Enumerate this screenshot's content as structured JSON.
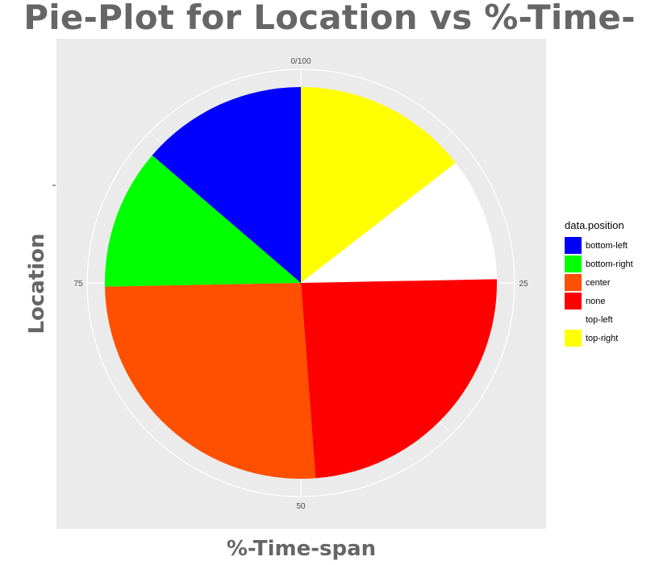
{
  "chart_data": {
    "type": "pie",
    "title": "Pie-Plot for Location vs %-Time-span",
    "xlabel": "%-Time-span",
    "ylabel": "Location",
    "theta_ticks": [
      "0/100",
      "25",
      "50",
      "75"
    ],
    "legend_title": "data.position",
    "legend_position": "right",
    "panel_background": "#ebebeb",
    "grid": true,
    "series": [
      {
        "name": "top-right",
        "value": 14.5,
        "color": "#ffff00"
      },
      {
        "name": "top-left",
        "value": 10.2,
        "color": "#ffffff"
      },
      {
        "name": "none",
        "value": 24.1,
        "color": "#ff0000"
      },
      {
        "name": "center",
        "value": 25.9,
        "color": "#ff4f00"
      },
      {
        "name": "bottom-right",
        "value": 11.6,
        "color": "#00ff00"
      },
      {
        "name": "bottom-left",
        "value": 13.7,
        "color": "#0000ff"
      }
    ],
    "legend": [
      {
        "label": "bottom-left",
        "color": "#0000ff"
      },
      {
        "label": "bottom-right",
        "color": "#00ff00"
      },
      {
        "label": "center",
        "color": "#ff4f00"
      },
      {
        "label": "none",
        "color": "#ff0000"
      },
      {
        "label": "top-left",
        "color": "#ffffff"
      },
      {
        "label": "top-right",
        "color": "#ffff00"
      }
    ]
  }
}
